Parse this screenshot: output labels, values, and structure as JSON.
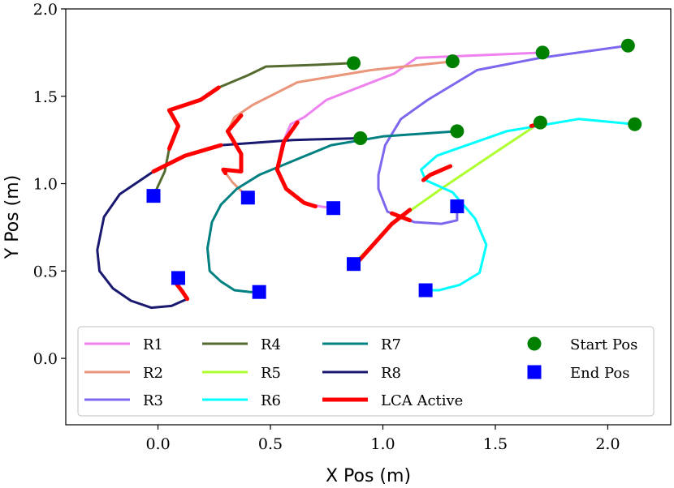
{
  "chart_data": {
    "type": "line",
    "title": "",
    "xlabel": "X Pos (m)",
    "ylabel": "Y Pos (m)",
    "xlim": [
      -0.41,
      2.28
    ],
    "ylim": [
      -0.38,
      2.0
    ],
    "xticks": [
      0.0,
      0.5,
      1.0,
      1.5,
      2.0
    ],
    "xtick_labels": [
      "0.0",
      "0.5",
      "1.0",
      "1.5",
      "2.0"
    ],
    "yticks": [
      0.0,
      0.5,
      1.0,
      1.5,
      2.0
    ],
    "ytick_labels": [
      "0.0",
      "0.5",
      "1.0",
      "1.5",
      "2.0"
    ],
    "grid": false,
    "legend_position": "lower-center",
    "lca_color": "#ff0000",
    "series": [
      {
        "name": "R1",
        "color": "#ee82ee",
        "points": [
          [
            1.71,
            1.75
          ],
          [
            1.15,
            1.72
          ],
          [
            1.05,
            1.63
          ],
          [
            0.75,
            1.48
          ],
          [
            0.65,
            1.38
          ],
          [
            0.59,
            1.34
          ],
          [
            0.55,
            1.22
          ],
          [
            0.53,
            1.08
          ],
          [
            0.57,
            0.97
          ],
          [
            0.65,
            0.89
          ],
          [
            0.72,
            0.87
          ],
          [
            0.78,
            0.86
          ]
        ],
        "lca": [
          [
            0.62,
            1.35
          ],
          [
            0.56,
            1.24
          ],
          [
            0.53,
            1.08
          ],
          [
            0.57,
            0.97
          ],
          [
            0.65,
            0.89
          ],
          [
            0.7,
            0.87
          ]
        ]
      },
      {
        "name": "R2",
        "color": "#e9967a",
        "points": [
          [
            1.31,
            1.7
          ],
          [
            0.95,
            1.65
          ],
          [
            0.62,
            1.58
          ],
          [
            0.42,
            1.45
          ],
          [
            0.34,
            1.38
          ],
          [
            0.31,
            1.3
          ],
          [
            0.37,
            1.17
          ],
          [
            0.37,
            1.07
          ],
          [
            0.29,
            1.08
          ],
          [
            0.33,
            1.01
          ],
          [
            0.4,
            0.92
          ]
        ],
        "lca": [
          [
            0.37,
            1.39
          ],
          [
            0.31,
            1.3
          ],
          [
            0.37,
            1.17
          ],
          [
            0.37,
            1.07
          ],
          [
            0.29,
            1.08
          ],
          [
            0.3,
            1.06
          ]
        ]
      },
      {
        "name": "R3",
        "color": "#7b68ee",
        "points": [
          [
            2.09,
            1.79
          ],
          [
            1.7,
            1.72
          ],
          [
            1.42,
            1.65
          ],
          [
            1.2,
            1.48
          ],
          [
            1.08,
            1.37
          ],
          [
            1.01,
            1.22
          ],
          [
            0.98,
            1.05
          ],
          [
            0.98,
            0.97
          ],
          [
            1.02,
            0.84
          ],
          [
            1.14,
            0.78
          ],
          [
            1.26,
            0.77
          ],
          [
            1.33,
            0.79
          ],
          [
            1.33,
            0.87
          ]
        ],
        "lca": [
          [
            1.04,
            0.83
          ],
          [
            1.12,
            0.79
          ]
        ]
      },
      {
        "name": "R4",
        "color": "#556b2f",
        "points": [
          [
            0.87,
            1.69
          ],
          [
            0.7,
            1.68
          ],
          [
            0.48,
            1.67
          ],
          [
            0.4,
            1.62
          ],
          [
            0.27,
            1.55
          ],
          [
            0.19,
            1.48
          ],
          [
            0.05,
            1.42
          ],
          [
            0.09,
            1.33
          ],
          [
            0.05,
            1.2
          ],
          [
            0.03,
            1.07
          ],
          [
            -0.02,
            0.93
          ]
        ],
        "lca": [
          [
            0.27,
            1.55
          ],
          [
            0.19,
            1.48
          ],
          [
            0.05,
            1.42
          ],
          [
            0.09,
            1.33
          ],
          [
            0.05,
            1.2
          ]
        ]
      },
      {
        "name": "R5",
        "color": "#adff2f",
        "points": [
          [
            1.7,
            1.35
          ],
          [
            1.49,
            1.17
          ],
          [
            1.27,
            0.98
          ],
          [
            1.05,
            0.78
          ],
          [
            0.87,
            0.54
          ]
        ],
        "lca": [
          [
            1.69,
            1.34
          ],
          [
            1.66,
            1.33
          ],
          [
            1.12,
            0.85
          ],
          [
            1.04,
            0.77
          ],
          [
            0.88,
            0.54
          ]
        ]
      },
      {
        "name": "R6",
        "color": "#00ffff",
        "points": [
          [
            2.12,
            1.34
          ],
          [
            1.87,
            1.37
          ],
          [
            1.55,
            1.3
          ],
          [
            1.24,
            1.16
          ],
          [
            1.17,
            1.08
          ],
          [
            1.19,
            1.02
          ],
          [
            1.31,
            0.95
          ],
          [
            1.41,
            0.8
          ],
          [
            1.46,
            0.65
          ],
          [
            1.43,
            0.49
          ],
          [
            1.34,
            0.42
          ],
          [
            1.25,
            0.39
          ],
          [
            1.19,
            0.39
          ]
        ],
        "lca": [
          [
            1.3,
            1.1
          ],
          [
            1.21,
            1.05
          ],
          [
            1.18,
            1.02
          ]
        ]
      },
      {
        "name": "R7",
        "color": "#008080",
        "points": [
          [
            1.33,
            1.3
          ],
          [
            1.0,
            1.27
          ],
          [
            0.77,
            1.22
          ],
          [
            0.45,
            1.05
          ],
          [
            0.35,
            0.97
          ],
          [
            0.28,
            0.88
          ],
          [
            0.24,
            0.78
          ],
          [
            0.22,
            0.63
          ],
          [
            0.23,
            0.5
          ],
          [
            0.28,
            0.44
          ],
          [
            0.34,
            0.39
          ],
          [
            0.41,
            0.38
          ],
          [
            0.45,
            0.38
          ]
        ],
        "lca": [
          [
            1.31,
            1.3
          ],
          [
            1.35,
            1.3
          ]
        ]
      },
      {
        "name": "R8",
        "color": "#191970",
        "points": [
          [
            0.9,
            1.26
          ],
          [
            0.6,
            1.25
          ],
          [
            0.28,
            1.22
          ],
          [
            0.12,
            1.16
          ],
          [
            -0.02,
            1.07
          ],
          [
            -0.17,
            0.94
          ],
          [
            -0.24,
            0.81
          ],
          [
            -0.27,
            0.62
          ],
          [
            -0.26,
            0.5
          ],
          [
            -0.2,
            0.4
          ],
          [
            -0.12,
            0.33
          ],
          [
            -0.03,
            0.29
          ],
          [
            0.06,
            0.3
          ],
          [
            0.13,
            0.34
          ],
          [
            0.11,
            0.38
          ],
          [
            0.08,
            0.43
          ],
          [
            0.09,
            0.46
          ]
        ],
        "lca": [
          [
            0.28,
            1.22
          ],
          [
            0.12,
            1.16
          ],
          [
            -0.02,
            1.07
          ],
          [
            0.13,
            0.34
          ],
          [
            0.11,
            0.38
          ],
          [
            0.08,
            0.43
          ]
        ]
      }
    ],
    "start_points": {
      "name": "Start Pos",
      "color": "#008000",
      "x": [
        1.71,
        1.31,
        2.09,
        0.87,
        1.7,
        2.12,
        1.33,
        0.9
      ],
      "y": [
        1.75,
        1.7,
        1.79,
        1.69,
        1.35,
        1.34,
        1.3,
        1.26
      ]
    },
    "end_points": {
      "name": "End Pos",
      "color": "#0000ff",
      "x": [
        0.78,
        0.4,
        1.33,
        -0.02,
        0.87,
        1.19,
        0.45,
        0.09
      ],
      "y": [
        0.86,
        0.92,
        0.87,
        0.93,
        0.54,
        0.39,
        0.38,
        0.46
      ]
    },
    "legend": {
      "lca_label": "LCA Active",
      "order": [
        "R1",
        "R2",
        "R3",
        "R4",
        "R5",
        "R6",
        "R7",
        "R8"
      ]
    }
  }
}
